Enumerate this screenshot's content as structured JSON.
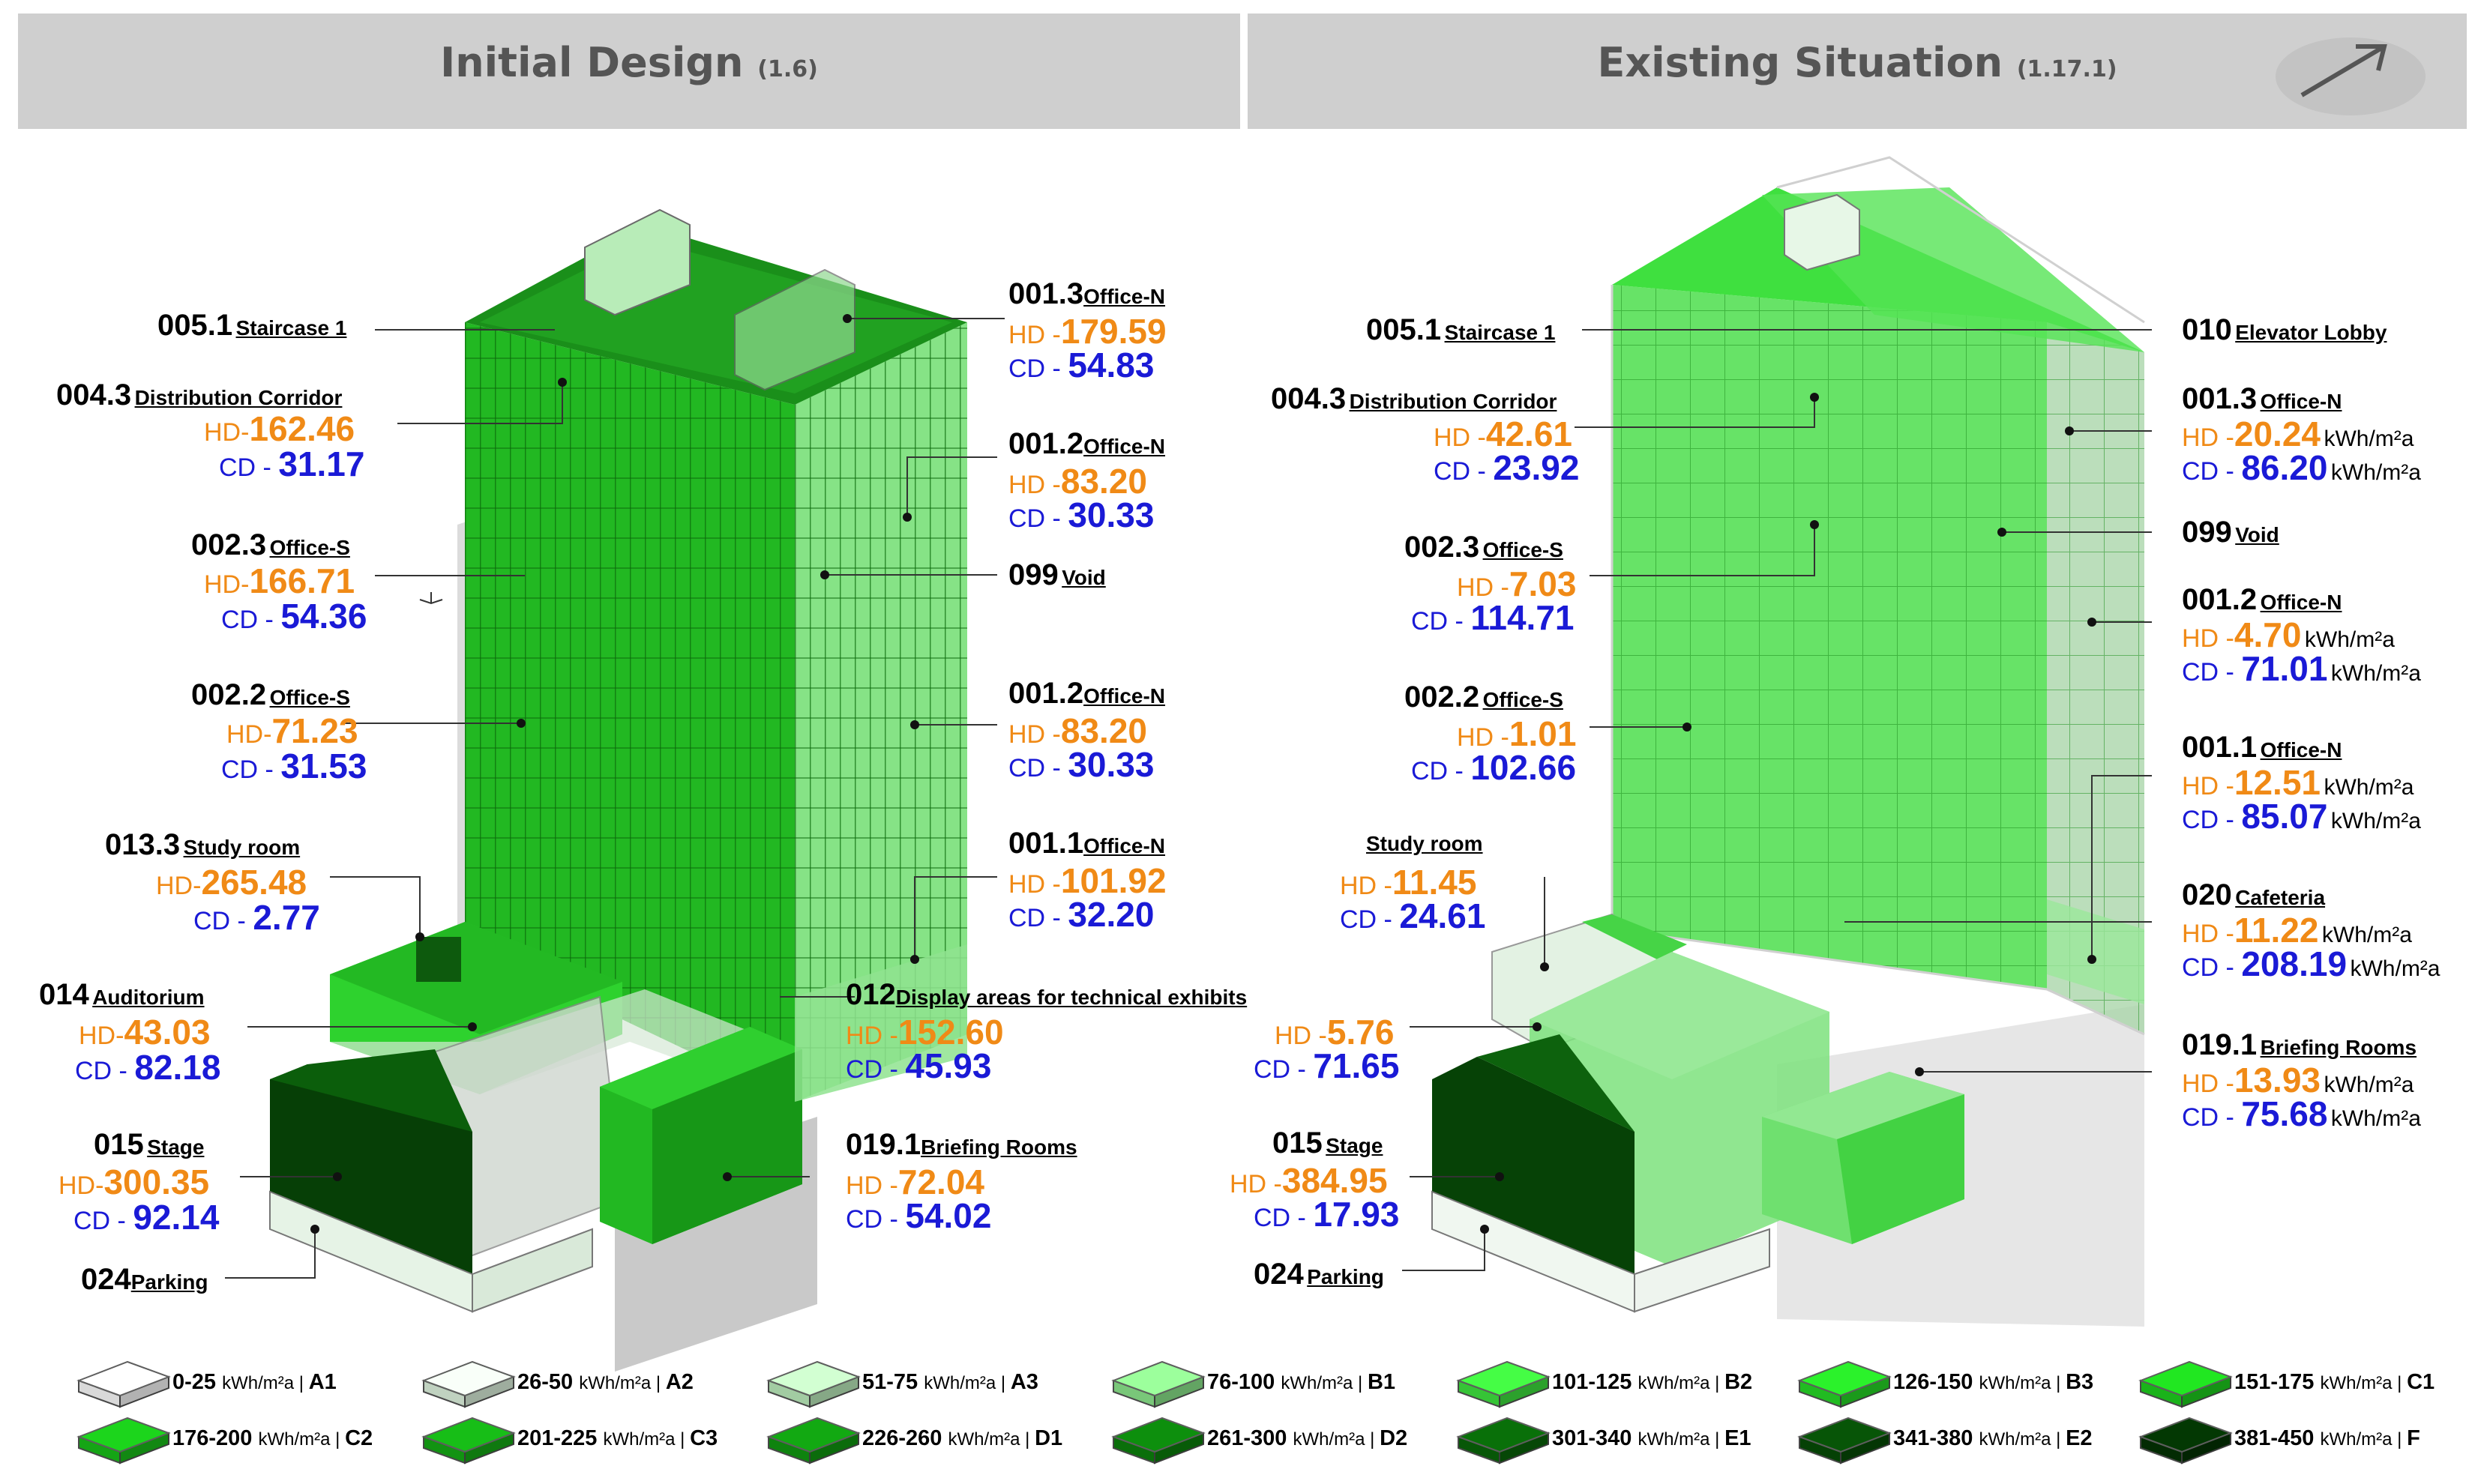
{
  "headers": {
    "left": {
      "title": "Initial Design",
      "version": "(1.6)"
    },
    "right": {
      "title": "Existing Situation",
      "version": "(1.17.1)"
    }
  },
  "prefix": {
    "hd": "HD-",
    "cd": "CD -",
    "hd_alt": "HD -",
    "hd_alt2": "HD- ",
    "cd_alt": "CD - "
  },
  "unit": "kWh/m²a",
  "initial": {
    "staircase1": {
      "code": "005.1",
      "name": "Staircase 1"
    },
    "corridor": {
      "code": "004.3",
      "name": "Distribution Corridor",
      "hd": "162.46",
      "cd": "31.17"
    },
    "office_s_23": {
      "code": "002.3",
      "name": "Office-S",
      "hd": "166.71",
      "cd": "54.36"
    },
    "office_s_22": {
      "code": "002.2",
      "name": "Office-S",
      "hd": "71.23",
      "cd": "31.53"
    },
    "study": {
      "code": "013.3",
      "name": "Study room",
      "hd": "265.48",
      "cd": "2.77"
    },
    "auditorium": {
      "code": "014",
      "name": "Auditorium",
      "hd": "43.03",
      "cd": "82.18"
    },
    "stage": {
      "code": "015",
      "name": "Stage",
      "hd": "300.35",
      "cd": "92.14"
    },
    "parking": {
      "code": "024",
      "name": "Parking"
    },
    "office_n_13": {
      "code": "001.3",
      "name": "Office-N",
      "hd": "179.59",
      "cd": "54.83"
    },
    "office_n_12a": {
      "code": "001.2",
      "name": "Office-N",
      "hd": "83.20",
      "cd": "30.33"
    },
    "void": {
      "code": "099",
      "name": "Void"
    },
    "office_n_12b": {
      "code": "001.2",
      "name": "Office-N",
      "hd": "83.20",
      "cd": "30.33"
    },
    "office_n_11": {
      "code": "001.1",
      "name": "Office-N",
      "hd": "101.92",
      "cd": "32.20"
    },
    "display": {
      "code": "012",
      "name": "Display areas for technical exhibits",
      "hd": "152.60",
      "cd": "45.93"
    },
    "briefing": {
      "code": "019.1",
      "name": "Briefing Rooms",
      "hd": "72.04",
      "cd": "54.02"
    }
  },
  "existing": {
    "staircase1": {
      "code": "005.1",
      "name": "Staircase 1"
    },
    "corridor": {
      "code": "004.3",
      "name": "Distribution Corridor",
      "hd": "42.61",
      "cd": "23.92"
    },
    "office_s_23": {
      "code": "002.3",
      "name": "Office-S",
      "hd": "7.03",
      "cd": "114.71"
    },
    "office_s_22": {
      "code": "002.2",
      "name": "Office-S",
      "hd": "1.01",
      "cd": "102.66"
    },
    "study": {
      "name": "Study room",
      "hd": "11.45",
      "cd": "24.61"
    },
    "auditorium": {
      "hd": "5.76",
      "cd": "71.65"
    },
    "stage": {
      "code": "015",
      "name": "Stage",
      "hd": "384.95",
      "cd": "17.93"
    },
    "parking": {
      "code": "024",
      "name": "Parking"
    },
    "elevator": {
      "code": "010",
      "name": "Elevator Lobby"
    },
    "office_n_13": {
      "code": "001.3",
      "name": "Office-N",
      "hd": "20.24",
      "cd": "86.20"
    },
    "void": {
      "code": "099",
      "name": "Void"
    },
    "office_n_12": {
      "code": "001.2",
      "name": "Office-N",
      "hd": "4.70",
      "cd": "71.01"
    },
    "office_n_11": {
      "code": "001.1",
      "name": "Office-N",
      "hd": "12.51",
      "cd": "85.07"
    },
    "cafeteria": {
      "code": "020",
      "name": "Cafeteria",
      "hd": "11.22",
      "cd": "208.19"
    },
    "briefing": {
      "code": "019.1",
      "name": "Briefing Rooms",
      "hd": "13.93",
      "cd": "75.68"
    }
  },
  "legend": [
    {
      "range": "0-25",
      "unit": "kWh/m²a",
      "grade": "A1",
      "color": "#ffffff"
    },
    {
      "range": "26-50",
      "unit": "kWh/m²a",
      "grade": "A2",
      "color": "#e2f7e2"
    },
    {
      "range": "51-75",
      "unit": "kWh/m²a",
      "grade": "A3",
      "color": "#bff0bf"
    },
    {
      "range": "76-100",
      "unit": "kWh/m²a",
      "grade": "B1",
      "color": "#8eea8e"
    },
    {
      "range": "101-125",
      "unit": "kWh/m²a",
      "grade": "B2",
      "color": "#3fe63f"
    },
    {
      "range": "126-150",
      "unit": "kWh/m²a",
      "grade": "B3",
      "color": "#27dc27"
    },
    {
      "range": "151-175",
      "unit": "kWh/m²a",
      "grade": "C1",
      "color": "#1ed21e"
    },
    {
      "range": "176-200",
      "unit": "kWh/m²a",
      "grade": "C2",
      "color": "#19c219"
    },
    {
      "range": "201-225",
      "unit": "kWh/m²a",
      "grade": "C3",
      "color": "#15ad15"
    },
    {
      "range": "226-260",
      "unit": "kWh/m²a",
      "grade": "D1",
      "color": "#109a10"
    },
    {
      "range": "261-300",
      "unit": "kWh/m²a",
      "grade": "D2",
      "color": "#0c820c"
    },
    {
      "range": "301-340",
      "unit": "kWh/m²a",
      "grade": "E1",
      "color": "#086608"
    },
    {
      "range": "341-380",
      "unit": "kWh/m²a",
      "grade": "E2",
      "color": "#064d06"
    },
    {
      "range": "381-450",
      "unit": "kWh/m²a",
      "grade": "F",
      "color": "#033303"
    }
  ]
}
